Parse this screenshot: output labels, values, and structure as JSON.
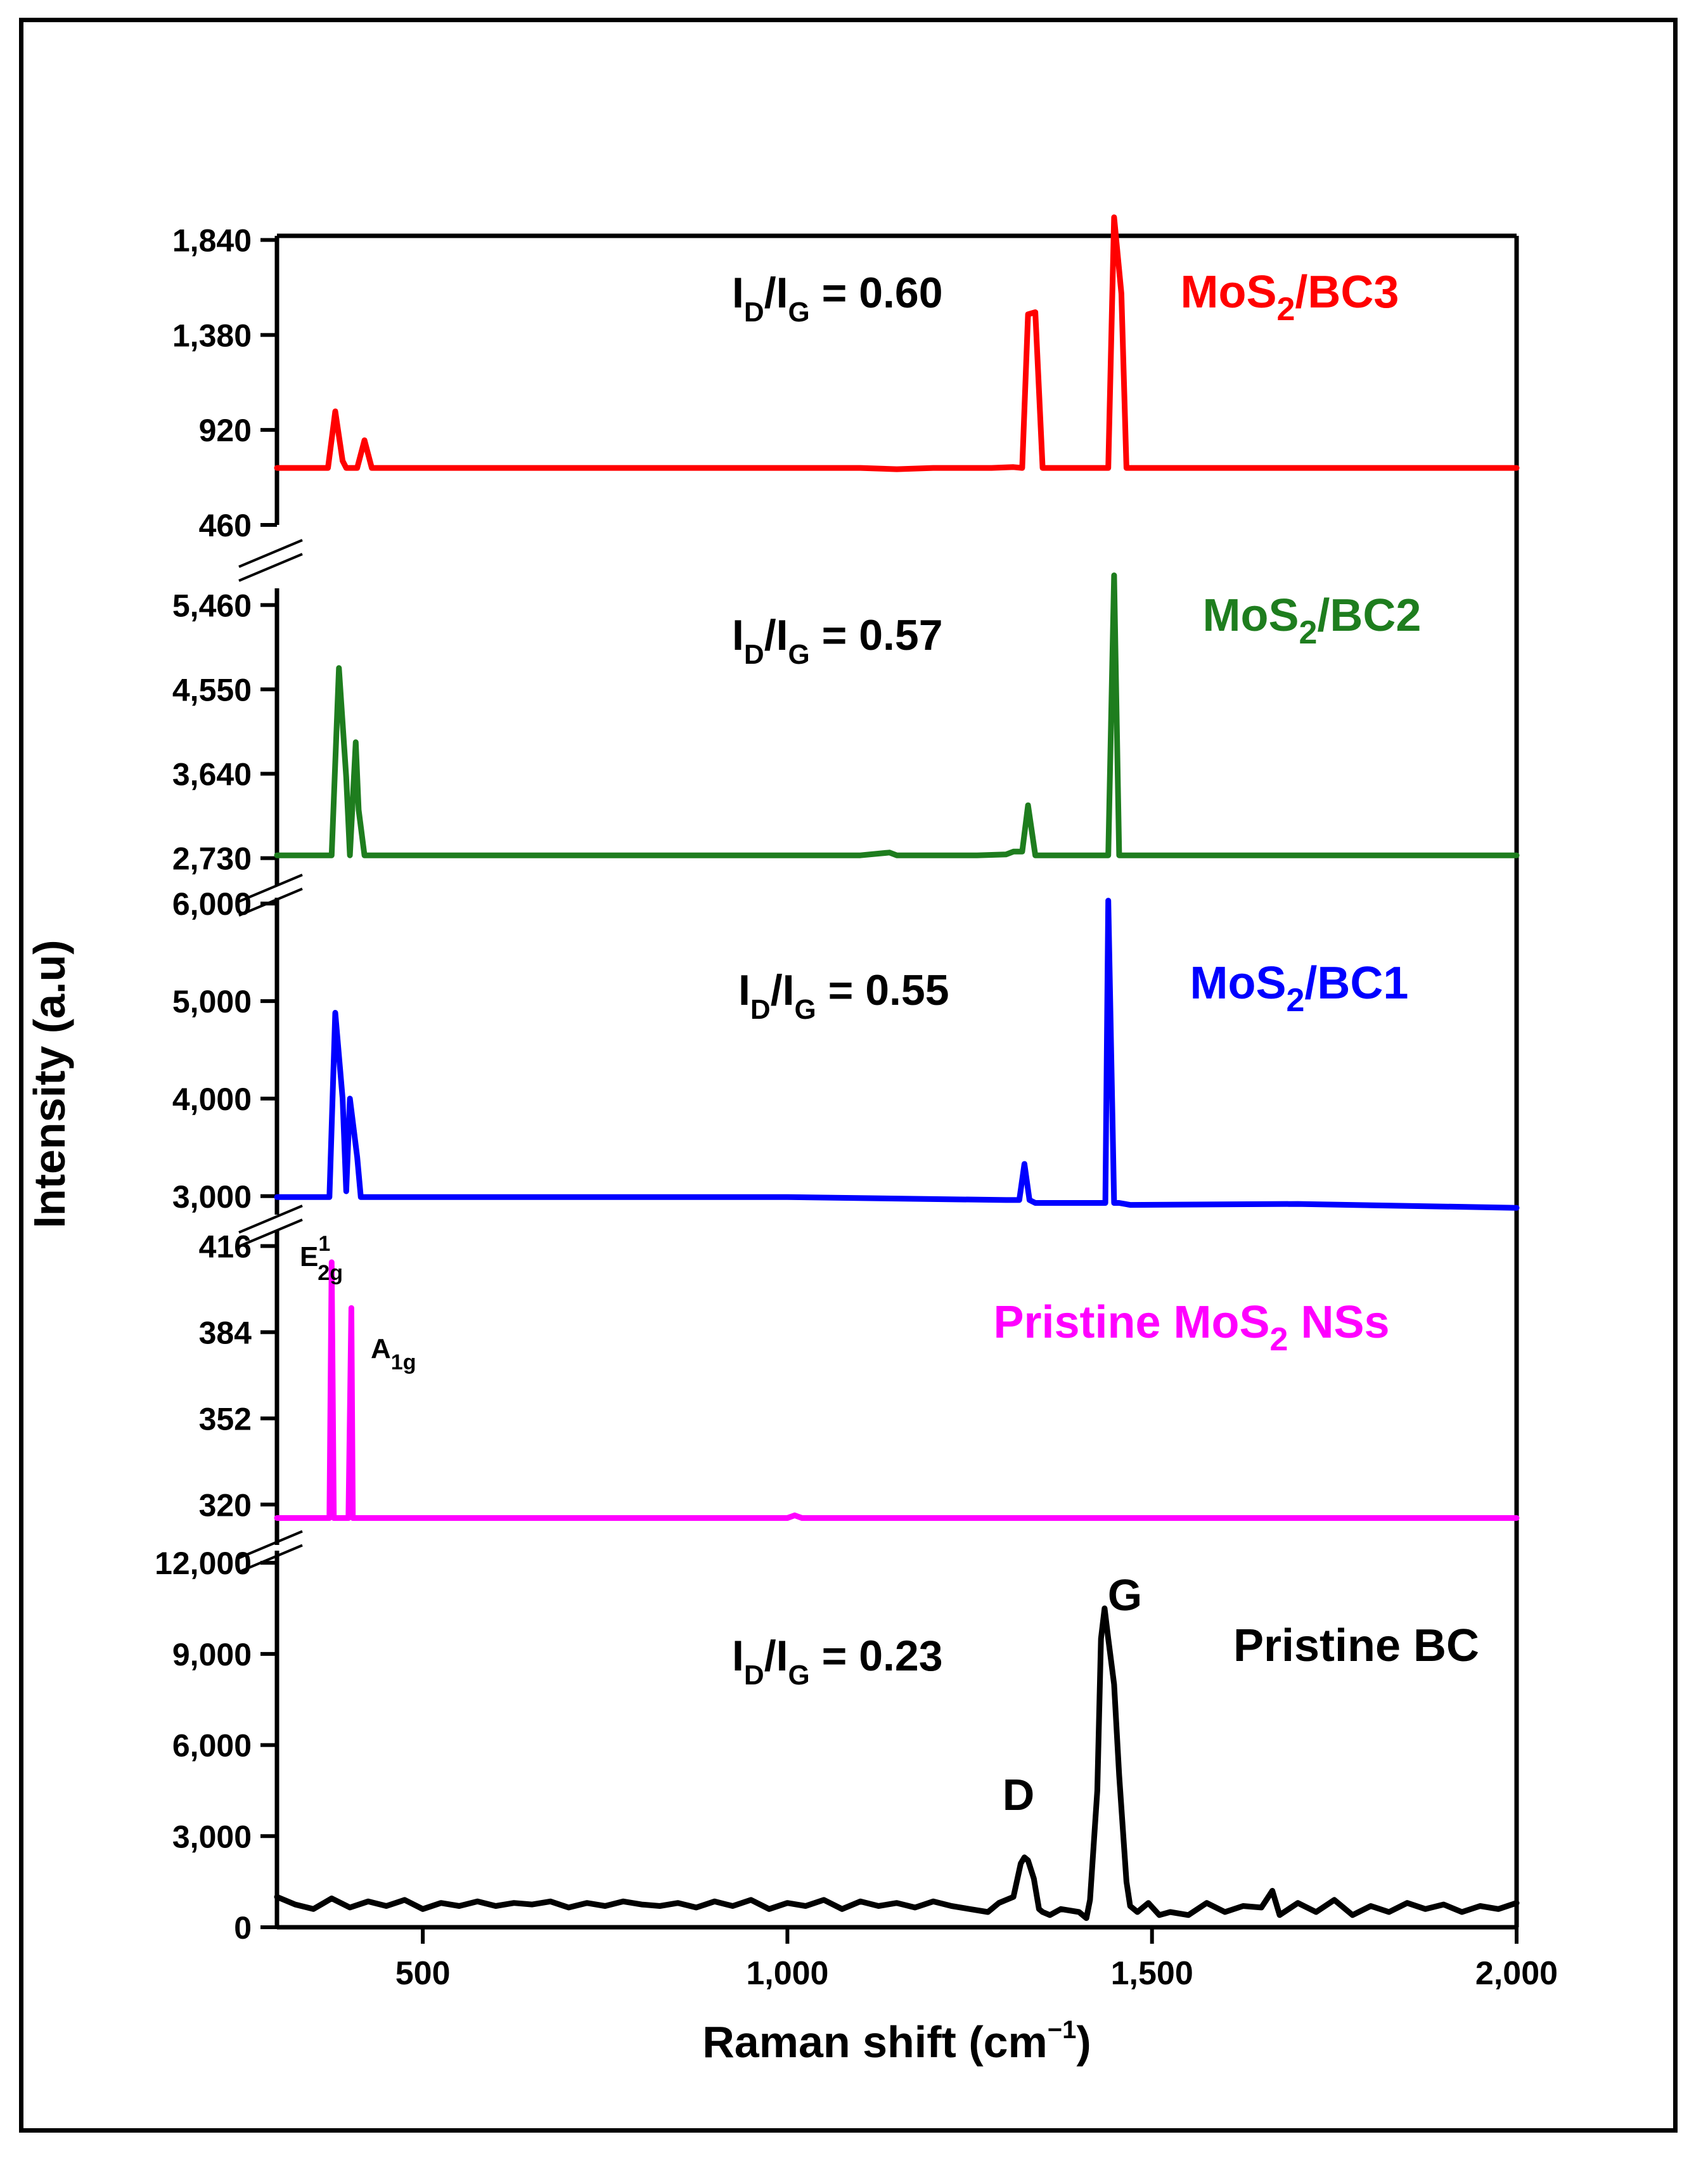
{
  "chart_data": {
    "type": "line",
    "layout": "stacked panels with broken y-axis",
    "xlabel": "Raman shift (cm",
    "xlabel_sup": "−1",
    "xlabel_close": ")",
    "ylabel": "Intensity (a.u)",
    "xlim": [
      300,
      2000
    ],
    "x_ticks": [
      500,
      1000,
      1500,
      2000
    ],
    "x_tick_labels": [
      "500",
      "1,000",
      "1,500",
      "2,000"
    ],
    "panels": [
      {
        "name": "MoS2/BC3",
        "label": "MoS",
        "label_sub": "2",
        "label_rest": "/BC3",
        "color": "#ff0000",
        "ylim": [
          460,
          1860
        ],
        "y_ticks": [
          460,
          920,
          1380,
          1840
        ],
        "y_tick_labels": [
          "460",
          "920",
          "1,380",
          "1,840"
        ],
        "ratio_label": {
          "i1": "I",
          "s1": "D",
          "slash": "/I",
          "s2": "G",
          "value": " = 0.60"
        },
        "x": [
          300,
          370,
          380,
          390,
          395,
          400,
          410,
          420,
          430,
          1000,
          1100,
          1150,
          1200,
          1280,
          1310,
          1322,
          1330,
          1340,
          1350,
          1420,
          1433,
          1440,
          1448,
          1458,
          1465,
          1470,
          2000
        ],
        "values": [
          736,
          736,
          1010,
          770,
          736,
          736,
          736,
          870,
          736,
          736,
          736,
          730,
          736,
          736,
          740,
          736,
          1480,
          1490,
          736,
          736,
          736,
          736,
          1950,
          1580,
          736,
          736,
          736
        ]
      },
      {
        "name": "MoS2/BC2",
        "label": "MoS",
        "label_sub": "2",
        "label_rest": "/BC2",
        "color": "#1e7d1e",
        "ylim": [
          2440,
          5640
        ],
        "y_ticks": [
          2730,
          3640,
          4550,
          5460
        ],
        "y_tick_labels": [
          "2,730",
          "3,640",
          "4,550",
          "5,460"
        ],
        "ratio_label": {
          "i1": "I",
          "s1": "D",
          "slash": "/I",
          "s2": "G",
          "value": " = 0.57"
        },
        "x": [
          300,
          375,
          385,
          395,
          400,
          408,
          412,
          420,
          500,
          1100,
          1140,
          1150,
          1260,
          1300,
          1310,
          1322,
          1330,
          1340,
          1435,
          1440,
          1448,
          1455,
          1460,
          2000
        ],
        "values": [
          2760,
          2760,
          4780,
          3600,
          2760,
          3980,
          3250,
          2760,
          2760,
          2760,
          2790,
          2760,
          2760,
          2770,
          2800,
          2800,
          3300,
          2760,
          2760,
          2760,
          5780,
          2760,
          2760,
          2760
        ]
      },
      {
        "name": "MoS2/BC1",
        "label": "MoS",
        "label_sub": "2",
        "label_rest": "/BC1",
        "color": "#0000ff",
        "ylim": [
          2810,
          6060
        ],
        "y_ticks": [
          3000,
          4000,
          5000,
          6000
        ],
        "y_tick_labels": [
          "3,000",
          "4,000",
          "5,000",
          "6,000"
        ],
        "ratio_label": {
          "i1": "I",
          "s1": "D",
          "slash": "/I",
          "s2": "G",
          "value": " = 0.55"
        },
        "x": [
          300,
          372,
          380,
          390,
          395,
          400,
          410,
          415,
          430,
          1000,
          1300,
          1318,
          1325,
          1332,
          1340,
          1420,
          1430,
          1436,
          1440,
          1448,
          1455,
          1470,
          1700,
          2000
        ],
        "values": [
          2990,
          2990,
          4880,
          4000,
          3050,
          4000,
          3400,
          2990,
          2990,
          2990,
          2960,
          2960,
          3330,
          2960,
          2930,
          2930,
          2930,
          2930,
          6030,
          2930,
          2930,
          2910,
          2920,
          2880
        ]
      },
      {
        "name": "Pristine MoS2 NSs",
        "label": "Pristine MoS",
        "label_sub": "2",
        "label_rest": " NSs",
        "color": "#ff00ff",
        "ylim": [
          305,
          422
        ],
        "y_ticks": [
          320,
          352,
          384,
          416
        ],
        "y_tick_labels": [
          "320",
          "352",
          "384",
          "416"
        ],
        "peak_labels": [
          {
            "main": "E",
            "sup": "1",
            "sub": "2g"
          },
          {
            "main": "A",
            "sub": "1g"
          }
        ],
        "x": [
          300,
          370,
          372,
          375,
          378,
          380,
          395,
          398,
          402,
          404,
          407,
          1000,
          1010,
          1020,
          2000
        ],
        "values": [
          315,
          315,
          315,
          410,
          315,
          315,
          315,
          315,
          393,
          315,
          315,
          315,
          316,
          315,
          315
        ]
      },
      {
        "name": "Pristine BC",
        "label": "Pristine BC",
        "color": "#000000",
        "ylim": [
          0,
          12400
        ],
        "y_ticks": [
          0,
          3000,
          6000,
          9000,
          12000
        ],
        "y_tick_labels": [
          "0",
          "3,000",
          "6,000",
          "9,000",
          "12,000"
        ],
        "ratio_label": {
          "i1": "I",
          "s1": "D",
          "slash": "/I",
          "s2": "G",
          "value": " = 0.23"
        },
        "peak_labels": [
          {
            "main": "D"
          },
          {
            "main": "G"
          }
        ],
        "x": [
          300,
          325,
          350,
          375,
          400,
          425,
          450,
          475,
          500,
          525,
          550,
          575,
          600,
          625,
          650,
          675,
          700,
          725,
          750,
          775,
          800,
          825,
          850,
          875,
          900,
          925,
          950,
          975,
          1000,
          1025,
          1050,
          1075,
          1100,
          1125,
          1150,
          1175,
          1200,
          1225,
          1250,
          1275,
          1290,
          1300,
          1310,
          1320,
          1325,
          1330,
          1338,
          1345,
          1350,
          1360,
          1375,
          1400,
          1410,
          1415,
          1425,
          1430,
          1435,
          1440,
          1448,
          1455,
          1465,
          1470,
          1480,
          1495,
          1510,
          1525,
          1550,
          1575,
          1600,
          1625,
          1650,
          1665,
          1675,
          1700,
          1725,
          1750,
          1775,
          1800,
          1825,
          1850,
          1875,
          1900,
          1925,
          1950,
          1975,
          2000
        ],
        "values": [
          1000,
          750,
          600,
          950,
          650,
          850,
          700,
          900,
          600,
          800,
          700,
          850,
          700,
          800,
          750,
          850,
          650,
          800,
          700,
          850,
          750,
          700,
          800,
          650,
          850,
          700,
          900,
          600,
          800,
          700,
          900,
          600,
          850,
          700,
          800,
          650,
          850,
          700,
          600,
          500,
          800,
          900,
          1000,
          2100,
          2300,
          2200,
          1600,
          600,
          500,
          400,
          600,
          500,
          300,
          900,
          4500,
          9500,
          10500,
          9500,
          8000,
          5000,
          1500,
          700,
          500,
          800,
          400,
          500,
          400,
          800,
          500,
          700,
          650,
          1200,
          400,
          800,
          500,
          900,
          400,
          700,
          500,
          800,
          600,
          750,
          500,
          700,
          600,
          800
        ]
      }
    ]
  }
}
